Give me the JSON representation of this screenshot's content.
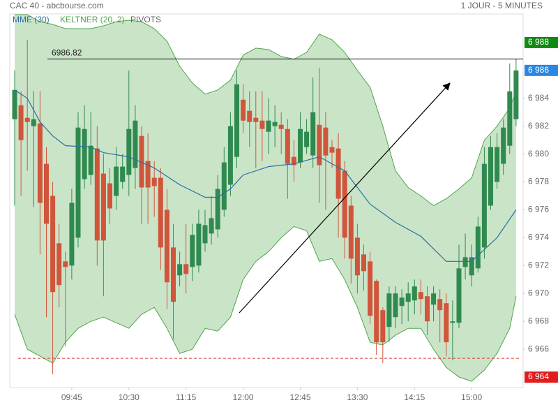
{
  "header": {
    "source": "CAC 40 - abcbourse.com",
    "period": "1 JOUR - 5 MINUTES"
  },
  "chart_data": {
    "type": "candlestick",
    "categories": [
      null,
      null,
      null,
      null,
      null,
      null,
      null,
      null,
      null,
      "09:45",
      null,
      null,
      null,
      null,
      null,
      null,
      null,
      null,
      "10:30",
      null,
      null,
      null,
      null,
      null,
      null,
      null,
      null,
      "11:15",
      null,
      null,
      null,
      null,
      null,
      null,
      null,
      null,
      "12:00",
      null,
      null,
      null,
      null,
      null,
      null,
      null,
      null,
      "12:45",
      null,
      null,
      null,
      null,
      null,
      null,
      null,
      null,
      "13:30",
      null,
      null,
      null,
      null,
      null,
      null,
      null,
      null,
      "14:15",
      null,
      null,
      null,
      null,
      null,
      null,
      null,
      null,
      "15:00",
      null,
      null,
      null,
      null,
      null,
      null,
      null
    ],
    "open": [
      6982.5,
      6983.5,
      6982.6,
      6982.0,
      6982.2,
      6979.3,
      6977.0,
      6973.6,
      6972.3,
      6972.0,
      6974.0,
      6978.2,
      6978.5,
      6980.4,
      6978.6,
      6977.9,
      6977.0,
      6978.0,
      6978.5,
      6979.0,
      6981.3,
      6979.5,
      6978.3,
      6978.3,
      6976.0,
      6973.3,
      6971.3,
      6972.1,
      6971.9,
      6972.0,
      6973.6,
      6974.3,
      6974.6,
      6976.0,
      6977.8,
      6979.8,
      6983.9,
      6983.1,
      6982.6,
      6982.4,
      6981.6,
      6982.0,
      6982.1,
      6981.8,
      6979.8,
      6979.4,
      6980.5,
      6979.9,
      6982.1,
      6981.9,
      6980.5,
      6980.4,
      6978.8,
      6976.3,
      6974.0,
      6972.8,
      6972.3,
      6970.9,
      6968.8,
      6967.6,
      6968.3,
      6969.1,
      6969.4,
      6969.5,
      6970.1,
      6969.8,
      6969.2,
      6969.6,
      6969.3,
      6967.9,
      6967.9,
      6971.9,
      6971.3,
      6971.8,
      6973.3,
      6976.3,
      6978.0,
      6979.3,
      6980.6,
      6982.5
    ],
    "high": [
      6986.0,
      6984.5,
      6988.2,
      6984.5,
      6984.5,
      6980.5,
      6978.0,
      6975.0,
      6973.0,
      6977.5,
      6983.0,
      6983.5,
      6983.0,
      6982.0,
      6980.0,
      6979.0,
      6980.5,
      6980.0,
      6986.0,
      6983.5,
      6982.0,
      6981.5,
      6979.5,
      6979.0,
      6977.5,
      6975.0,
      6973.0,
      6975.0,
      6975.0,
      6976.0,
      6976.0,
      6977.0,
      6978.5,
      6980.5,
      6983.0,
      6986.0,
      6985.0,
      6984.5,
      6984.5,
      6984.5,
      6984.0,
      6983.5,
      6983.0,
      6982.5,
      6981.0,
      6983.0,
      6982.5,
      6985.5,
      6986.2,
      6983.0,
      6981.0,
      6981.5,
      6979.5,
      6977.0,
      6975.0,
      6973.5,
      6973.0,
      6971.0,
      6969.0,
      6970.5,
      6970.5,
      6970.3,
      6970.8,
      6971.0,
      6971.0,
      6970.5,
      6970.5,
      6970.3,
      6970.0,
      6969.5,
      6973.5,
      6974.3,
      6973.5,
      6975.5,
      6980.5,
      6981.3,
      6981.5,
      6982.5,
      6986.5,
      6986.8
    ],
    "low": [
      6976.3,
      6977.0,
      6978.8,
      6976.2,
      6972.8,
      6968.3,
      6964.2,
      6969.0,
      6966.2,
      6971.0,
      6973.3,
      6977.5,
      6977.8,
      6972.0,
      6969.8,
      6975.0,
      6976.0,
      6977.5,
      6977.0,
      6977.5,
      6975.0,
      6975.0,
      6975.5,
      6971.7,
      6968.9,
      6966.7,
      6970.5,
      6970.0,
      6970.9,
      6971.5,
      6973.0,
      6973.5,
      6974.0,
      6975.5,
      6977.0,
      6979.0,
      6981.5,
      6980.5,
      6979.0,
      6979.5,
      6980.0,
      6980.5,
      6980.0,
      6976.8,
      6978.0,
      6979.0,
      6980.0,
      6979.0,
      6976.5,
      6976.0,
      6979.0,
      6974.0,
      6972.5,
      6970.7,
      6970.0,
      6970.2,
      6967.8,
      6965.6,
      6965.0,
      6966.5,
      6967.5,
      6967.8,
      6968.0,
      6968.5,
      6968.5,
      6967.0,
      6968.0,
      6966.5,
      6965.5,
      6965.2,
      6967.5,
      6971.0,
      6970.5,
      6971.5,
      6972.5,
      6976.0,
      6977.5,
      6978.5,
      6980.0,
      6982.0
    ],
    "close": [
      6984.6,
      6981.0,
      6982.3,
      6982.5,
      6976.5,
      6975.0,
      6970.1,
      6970.6,
      6971.9,
      6976.5,
      6981.9,
      6981.8,
      6980.6,
      6973.8,
      6973.8,
      6976.1,
      6979.1,
      6979.1,
      6981.8,
      6982.4,
      6977.6,
      6977.6,
      6977.7,
      6973.3,
      6970.8,
      6969.4,
      6972.1,
      6971.4,
      6974.2,
      6975.0,
      6974.9,
      6975.4,
      6977.5,
      6979.4,
      6982.0,
      6985.0,
      6982.4,
      6982.3,
      6982.3,
      6981.8,
      6982.4,
      6982.3,
      6981.8,
      6979.3,
      6979.2,
      6981.8,
      6981.6,
      6983.0,
      6979.2,
      6979.9,
      6980.1,
      6976.8,
      6974.0,
      6972.5,
      6971.3,
      6971.6,
      6968.4,
      6966.5,
      6966.5,
      6970.0,
      6970.0,
      6969.7,
      6970.0,
      6970.5,
      6969.6,
      6968.0,
      6970.0,
      6968.8,
      6966.5,
      6968.0,
      6971.8,
      6972.6,
      6972.6,
      6974.8,
      6979.3,
      6980.5,
      6980.5,
      6981.9,
      6984.5,
      6986.0
    ],
    "up_color": "#2f8a4f",
    "down_color": "#d0553b",
    "mme": {
      "name": "MME (30)",
      "color": "#2b6ea6",
      "x": [
        0,
        2,
        4,
        6,
        8,
        12,
        14,
        18,
        22,
        26,
        30,
        32,
        34,
        36,
        40,
        44,
        48,
        52,
        56,
        60,
        64,
        68,
        72,
        76,
        79
      ],
      "values": [
        6984.6,
        6984.0,
        6982.3,
        6981.3,
        6980.6,
        6980.5,
        6980.1,
        6979.8,
        6979.0,
        6977.8,
        6976.9,
        6976.9,
        6977.5,
        6978.5,
        6979.1,
        6979.3,
        6979.8,
        6978.8,
        6976.4,
        6975.1,
        6974.1,
        6972.3,
        6972.3,
        6974.0,
        6976.0
      ]
    },
    "keltner": {
      "name": "KELTNER (20, 2)",
      "color": "#4fa54a",
      "x": [
        0,
        2,
        4,
        6,
        8,
        10,
        12,
        14,
        16,
        18,
        20,
        22,
        24,
        26,
        28,
        30,
        32,
        34,
        36,
        38,
        40,
        42,
        44,
        46,
        48,
        50,
        52,
        54,
        56,
        58,
        60,
        62,
        64,
        66,
        68,
        70,
        72,
        74,
        76,
        78,
        79
      ],
      "upper": [
        6990,
        6990,
        6989.5,
        6989.3,
        6989,
        6989,
        6989,
        6989.2,
        6989.5,
        6989.6,
        6989.5,
        6989,
        6988.1,
        6986.3,
        6985.1,
        6984.3,
        6984.6,
        6985.3,
        6987.1,
        6987.6,
        6987.5,
        6987,
        6986.8,
        6987.3,
        6988.6,
        6988.2,
        6987.3,
        6986,
        6984.8,
        6982,
        6978.8,
        6977.6,
        6977,
        6976.3,
        6976.8,
        6977.5,
        6978.3,
        6981,
        6982,
        6983.3,
        6984.5
      ],
      "lower": [
        6968.5,
        6966,
        6965.5,
        6965,
        6966.5,
        6967.5,
        6968,
        6968.3,
        6967.9,
        6967.5,
        6968.5,
        6969,
        6967.5,
        6965.7,
        6966,
        6967.5,
        6967.3,
        6968.3,
        6971,
        6972.3,
        6973,
        6974,
        6974.8,
        6974.5,
        6972.3,
        6972.5,
        6971,
        6969,
        6966.5,
        6966.3,
        6967,
        6967.5,
        6967.5,
        6966,
        6964.7,
        6964,
        6963.7,
        6964.5,
        6965.7,
        6967.5,
        6969.8
      ]
    },
    "pivots": {
      "name": "PIVOTS",
      "color": "#d43a2f",
      "levels": [
        6965.35
      ]
    },
    "level_line": {
      "value": 6986.82,
      "label": "6986.82"
    },
    "price_markers": [
      {
        "value": 6988,
        "label": "6 988",
        "color": "#118a11"
      },
      {
        "value": 6986,
        "label": "6 986",
        "color": "#2a86e0"
      },
      {
        "value": 6964,
        "label": "6 964",
        "color": "#e01e1e"
      }
    ],
    "ylim": [
      6963.25,
      6990.05
    ],
    "yticks": [
      {
        "value": 6966,
        "label": "6 966"
      },
      {
        "value": 6968,
        "label": "6 968"
      },
      {
        "value": 6970,
        "label": "6 970"
      },
      {
        "value": 6972,
        "label": "6 972"
      },
      {
        "value": 6974,
        "label": "6 974"
      },
      {
        "value": 6976,
        "label": "6 976"
      },
      {
        "value": 6978,
        "label": "6 978"
      },
      {
        "value": 6980,
        "label": "6 980"
      },
      {
        "value": 6982,
        "label": "6 982"
      },
      {
        "value": 6984,
        "label": "6 984"
      }
    ]
  }
}
